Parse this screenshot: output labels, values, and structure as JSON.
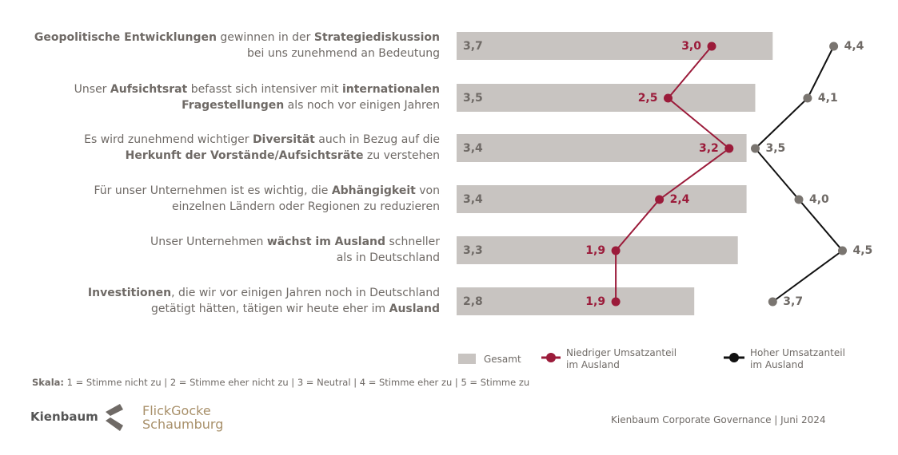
{
  "chart_data": {
    "type": "bar",
    "orientation": "horizontal",
    "categories": [
      [
        [
          {
            "t": "Geopolitische Entwicklungen",
            "b": true
          },
          {
            "t": " gewinnen in der ",
            "b": false
          },
          {
            "t": "Strategiediskussion",
            "b": true
          }
        ],
        [
          {
            "t": "bei uns zunehmend an Bedeutung",
            "b": false
          }
        ]
      ],
      [
        [
          {
            "t": "Unser ",
            "b": false
          },
          {
            "t": "Aufsichtsrat",
            "b": true
          },
          {
            "t": " befasst sich intensiver mit ",
            "b": false
          },
          {
            "t": "internationalen",
            "b": true
          }
        ],
        [
          {
            "t": "Fragestellungen",
            "b": true
          },
          {
            "t": " als noch vor einigen Jahren",
            "b": false
          }
        ]
      ],
      [
        [
          {
            "t": "Es wird zunehmend wichtiger ",
            "b": false
          },
          {
            "t": "Diversität",
            "b": true
          },
          {
            "t": " auch in Bezug auf die",
            "b": false
          }
        ],
        [
          {
            "t": "Herkunft der Vorstände/Aufsichtsräte",
            "b": true
          },
          {
            "t": " zu verstehen",
            "b": false
          }
        ]
      ],
      [
        [
          {
            "t": "Für unser Unternehmen ist es wichtig, die ",
            "b": false
          },
          {
            "t": "Abhängigkeit",
            "b": true
          },
          {
            "t": " von",
            "b": false
          }
        ],
        [
          {
            "t": "einzelnen Ländern oder Regionen zu reduzieren",
            "b": false
          }
        ]
      ],
      [
        [
          {
            "t": "Unser Unternehmen ",
            "b": false
          },
          {
            "t": "wächst im Ausland",
            "b": true
          },
          {
            "t": " schneller",
            "b": false
          }
        ],
        [
          {
            "t": "als in Deutschland",
            "b": false
          }
        ]
      ],
      [
        [
          {
            "t": "Investitionen",
            "b": true
          },
          {
            "t": ", die wir vor einigen Jahren noch in Deutschland",
            "b": false
          }
        ],
        [
          {
            "t": "getätigt hätten, tätigen wir heute eher im ",
            "b": false
          },
          {
            "t": "Ausland",
            "b": true
          }
        ]
      ]
    ],
    "series": [
      {
        "name": "Gesamt",
        "kind": "bar",
        "color": "#c8c4c1",
        "values": [
          3.7,
          3.5,
          3.4,
          3.4,
          3.3,
          2.8
        ],
        "labels": [
          "3,7",
          "3,5",
          "3,4",
          "3,4",
          "3,3",
          "2,8"
        ]
      },
      {
        "name": "Niedriger Umsatzanteil im Ausland",
        "kind": "line",
        "color": "#9b1b3a",
        "values": [
          3.0,
          2.5,
          3.2,
          2.4,
          1.9,
          1.9
        ],
        "labels": [
          "3,0",
          "2,5",
          "3,2",
          "2,4",
          "1,9",
          "1,9"
        ]
      },
      {
        "name": "Hoher Umsatzanteil im Ausland",
        "kind": "line",
        "color": "#111111",
        "point_color": "#7a7570",
        "values": [
          4.4,
          4.1,
          3.5,
          4.0,
          4.5,
          3.7
        ],
        "labels": [
          "4,4",
          "4,1",
          "3,5",
          "4,0",
          "4,5",
          "3,7"
        ]
      }
    ],
    "xlim": [
      0,
      5
    ],
    "grid": false,
    "legend_position": "bottom-right"
  },
  "legend": {
    "gesamt": "Gesamt",
    "niedrig_1": "Niedriger Umsatzanteil",
    "niedrig_2": "im Ausland",
    "hoch_1": "Hoher Umsatzanteil",
    "hoch_2": "im Ausland"
  },
  "scale": {
    "label": "Skala:",
    "text": " 1 = Stimme  nicht zu | 2 = Stimme  eher  nicht zu | 3 = Neutral  | 4 = Stimme  eher zu | 5 = Stimme  zu"
  },
  "logos": {
    "kienbaum": "Kienbaum",
    "fgs_1": "FlickGocke",
    "fgs_2": "Schaumburg"
  },
  "footer": "Kienbaum  Corporate Governance  | Juni 2024"
}
